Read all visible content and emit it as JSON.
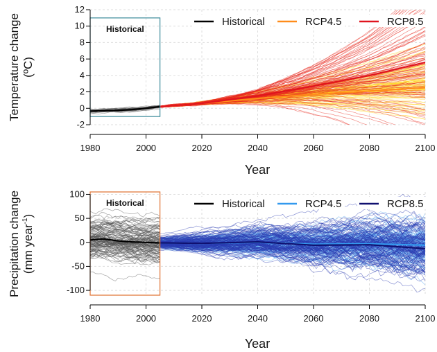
{
  "chart_data": [
    {
      "type": "line",
      "xlabel": "Year",
      "ylabel": "Temperature change",
      "ylabel_unit": "(ºC)",
      "xlim": [
        1980,
        2100
      ],
      "ylim": [
        -2,
        12
      ],
      "x_ticks": [
        "1980",
        "2000",
        "2020",
        "2040",
        "2060",
        "2080",
        "2100"
      ],
      "y_ticks": [
        "-2",
        "0",
        "2",
        "4",
        "6",
        "8",
        "10",
        "12"
      ],
      "grid": true,
      "legend_position": "top",
      "inset_box": {
        "label": "Historical",
        "x_range": [
          1980,
          2005
        ],
        "y_range": [
          -1,
          11
        ],
        "color": "#3a8a9a"
      },
      "series": [
        {
          "name": "Historical",
          "color": "#000000",
          "ensemble_color": "#555555",
          "x": [
            1980,
            1985,
            1990,
            1995,
            2000,
            2005
          ],
          "values": [
            -0.35,
            -0.3,
            -0.25,
            -0.15,
            0.0,
            0.2
          ]
        },
        {
          "name": "RCP4.5",
          "color": "#ff8c1a",
          "ensemble_color": "#ffd21a",
          "x": [
            2005,
            2020,
            2040,
            2060,
            2080,
            2100
          ],
          "values": [
            0.2,
            0.6,
            1.2,
            1.7,
            2.1,
            2.5
          ]
        },
        {
          "name": "RCP8.5",
          "color": "#e0141e",
          "ensemble_color": "#e8281e",
          "x": [
            2005,
            2020,
            2040,
            2060,
            2080,
            2100
          ],
          "values": [
            0.2,
            0.6,
            1.5,
            2.7,
            4.0,
            5.6
          ]
        }
      ]
    },
    {
      "type": "line",
      "xlabel": "Year",
      "ylabel": "Precipitation change",
      "ylabel_unit": "(mm year",
      "ylabel_unit_sup": "-1",
      "ylabel_unit_end": ")",
      "xlim": [
        1980,
        2100
      ],
      "ylim": [
        -110,
        105
      ],
      "x_ticks": [
        "1980",
        "2000",
        "2020",
        "2040",
        "2060",
        "2080",
        "2100"
      ],
      "y_ticks": [
        "-100",
        "-50",
        "0",
        "50",
        "100"
      ],
      "grid": true,
      "legend_position": "top",
      "inset_box": {
        "label": "Historical",
        "x_range": [
          1980,
          2005
        ],
        "y_range": [
          -110,
          105
        ],
        "color": "#e07030"
      },
      "series": [
        {
          "name": "Historical",
          "color": "#000000",
          "ensemble_color": "#555555",
          "x": [
            1980,
            1985,
            1990,
            1995,
            2000,
            2005
          ],
          "values": [
            5,
            7,
            3,
            1,
            0,
            -1
          ]
        },
        {
          "name": "RCP4.5",
          "color": "#3399ee",
          "ensemble_color": "#5aaaf0",
          "x": [
            2005,
            2020,
            2040,
            2060,
            2080,
            2100
          ],
          "values": [
            -1,
            -2,
            0,
            -4,
            -3,
            -6
          ]
        },
        {
          "name": "RCP8.5",
          "color": "#101070",
          "ensemble_color": "#2a3ab0",
          "x": [
            2005,
            2020,
            2040,
            2060,
            2080,
            2100
          ],
          "values": [
            -1,
            -2,
            1,
            -6,
            -5,
            -13
          ]
        }
      ]
    }
  ]
}
